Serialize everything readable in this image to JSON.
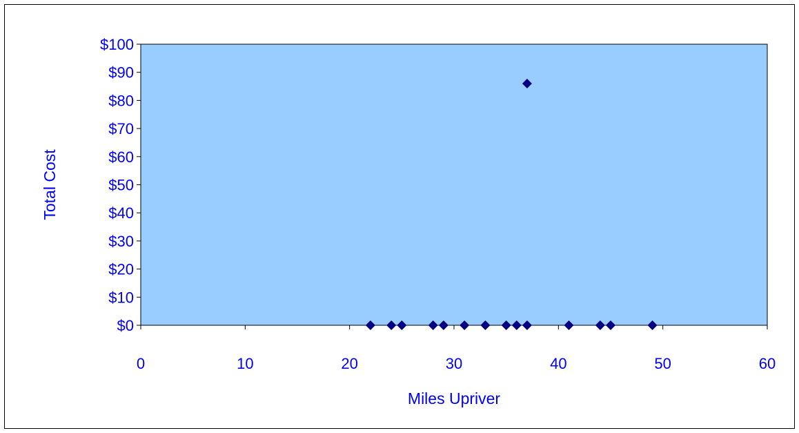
{
  "chart_data": {
    "type": "scatter",
    "title": "",
    "xlabel": "Miles Upriver",
    "ylabel": "Total Cost",
    "xlim": [
      0,
      60
    ],
    "ylim": [
      0,
      100
    ],
    "x_ticks": [
      "0",
      "10",
      "20",
      "30",
      "40",
      "50",
      "60"
    ],
    "y_ticks": [
      "$0",
      "$10",
      "$20",
      "$30",
      "$40",
      "$50",
      "$60",
      "$70",
      "$80",
      "$90",
      "$100"
    ],
    "grid": false,
    "legend": "none",
    "marker": "diamond",
    "points": [
      {
        "x": 22,
        "y": 0
      },
      {
        "x": 24,
        "y": 0
      },
      {
        "x": 25,
        "y": 0
      },
      {
        "x": 28,
        "y": 0
      },
      {
        "x": 29,
        "y": 0
      },
      {
        "x": 31,
        "y": 0
      },
      {
        "x": 33,
        "y": 0
      },
      {
        "x": 35,
        "y": 0
      },
      {
        "x": 36,
        "y": 0
      },
      {
        "x": 37,
        "y": 0
      },
      {
        "x": 37,
        "y": 86
      },
      {
        "x": 41,
        "y": 0
      },
      {
        "x": 44,
        "y": 0
      },
      {
        "x": 45,
        "y": 0
      },
      {
        "x": 49,
        "y": 0
      }
    ],
    "colors": {
      "plot_background": "#99ccff",
      "marker": "#000080",
      "text": "#0000ff",
      "axis": "#000000"
    }
  }
}
